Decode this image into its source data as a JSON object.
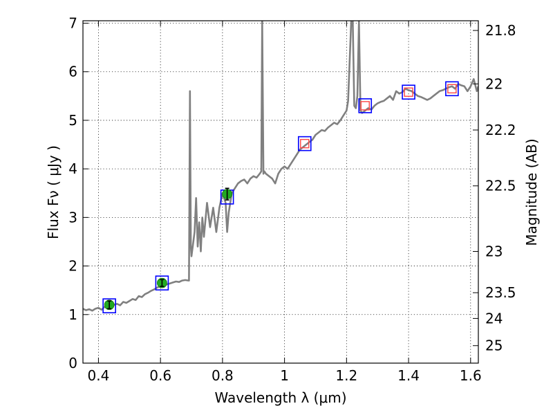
{
  "chart_data": {
    "type": "line",
    "xlabel": "Wavelength  λ (μm)",
    "ylabel": "Flux  Fν  ( μJy )",
    "ylabel_right": "Magnitude (AB)",
    "xlim": [
      0.35,
      1.625
    ],
    "ylim": [
      0,
      7.05
    ],
    "grid": true,
    "x_ticks": [
      {
        "value": 0.4,
        "label": "0.4"
      },
      {
        "value": 0.6,
        "label": "0.6"
      },
      {
        "value": 0.8,
        "label": "0.8"
      },
      {
        "value": 1.0,
        "label": "1"
      },
      {
        "value": 1.2,
        "label": "1.2"
      },
      {
        "value": 1.4,
        "label": "1.4"
      },
      {
        "value": 1.6,
        "label": "1.6"
      }
    ],
    "y_ticks": [
      {
        "value": 0,
        "label": "0"
      },
      {
        "value": 1,
        "label": "1"
      },
      {
        "value": 2,
        "label": "2"
      },
      {
        "value": 3,
        "label": "3"
      },
      {
        "value": 4,
        "label": "4"
      },
      {
        "value": 5,
        "label": "5"
      },
      {
        "value": 6,
        "label": "6"
      },
      {
        "value": 7,
        "label": "7"
      }
    ],
    "right_ticks": [
      {
        "flux": 6.85,
        "label": "21.8"
      },
      {
        "flux": 5.75,
        "label": "22"
      },
      {
        "flux": 4.8,
        "label": "22.2"
      },
      {
        "flux": 3.65,
        "label": "22.5"
      },
      {
        "flux": 2.3,
        "label": "23"
      },
      {
        "flux": 1.45,
        "label": "23.5"
      },
      {
        "flux": 0.92,
        "label": "24"
      },
      {
        "flux": 0.36,
        "label": "25"
      }
    ],
    "series": [
      {
        "color": "#808080",
        "points": [
          [
            0.35,
            1.12
          ],
          [
            0.36,
            1.09
          ],
          [
            0.37,
            1.11
          ],
          [
            0.38,
            1.08
          ],
          [
            0.39,
            1.12
          ],
          [
            0.4,
            1.14
          ],
          [
            0.41,
            1.1
          ],
          [
            0.42,
            1.16
          ],
          [
            0.43,
            1.13
          ],
          [
            0.44,
            1.18
          ],
          [
            0.45,
            1.2
          ],
          [
            0.46,
            1.22
          ],
          [
            0.47,
            1.19
          ],
          [
            0.48,
            1.26
          ],
          [
            0.49,
            1.24
          ],
          [
            0.5,
            1.28
          ],
          [
            0.51,
            1.32
          ],
          [
            0.52,
            1.3
          ],
          [
            0.53,
            1.38
          ],
          [
            0.54,
            1.36
          ],
          [
            0.55,
            1.42
          ],
          [
            0.56,
            1.45
          ],
          [
            0.57,
            1.49
          ],
          [
            0.58,
            1.52
          ],
          [
            0.59,
            1.56
          ],
          [
            0.6,
            1.58
          ],
          [
            0.61,
            1.6
          ],
          [
            0.62,
            1.62
          ],
          [
            0.63,
            1.64
          ],
          [
            0.64,
            1.66
          ],
          [
            0.65,
            1.68
          ],
          [
            0.66,
            1.67
          ],
          [
            0.67,
            1.7
          ],
          [
            0.68,
            1.71
          ],
          [
            0.69,
            1.7
          ],
          [
            0.692,
            1.7
          ],
          [
            0.695,
            5.6
          ],
          [
            0.698,
            2.4
          ],
          [
            0.7,
            2.2
          ],
          [
            0.71,
            2.7
          ],
          [
            0.715,
            3.4
          ],
          [
            0.72,
            2.4
          ],
          [
            0.725,
            2.9
          ],
          [
            0.73,
            2.3
          ],
          [
            0.735,
            3.0
          ],
          [
            0.74,
            2.6
          ],
          [
            0.75,
            3.3
          ],
          [
            0.76,
            2.8
          ],
          [
            0.77,
            3.2
          ],
          [
            0.78,
            2.7
          ],
          [
            0.79,
            3.2
          ],
          [
            0.8,
            3.5
          ],
          [
            0.81,
            3.3
          ],
          [
            0.815,
            2.7
          ],
          [
            0.82,
            3.1
          ],
          [
            0.83,
            3.5
          ],
          [
            0.84,
            3.6
          ],
          [
            0.85,
            3.7
          ],
          [
            0.86,
            3.75
          ],
          [
            0.87,
            3.78
          ],
          [
            0.88,
            3.7
          ],
          [
            0.89,
            3.8
          ],
          [
            0.9,
            3.85
          ],
          [
            0.91,
            3.82
          ],
          [
            0.92,
            3.9
          ],
          [
            0.925,
            3.95
          ],
          [
            0.928,
            7.05
          ],
          [
            0.932,
            3.9
          ],
          [
            0.935,
            3.95
          ],
          [
            0.94,
            3.9
          ],
          [
            0.95,
            3.85
          ],
          [
            0.96,
            3.8
          ],
          [
            0.97,
            3.7
          ],
          [
            0.98,
            3.9
          ],
          [
            0.99,
            4.0
          ],
          [
            1.0,
            4.05
          ],
          [
            1.01,
            4.0
          ],
          [
            1.02,
            4.1
          ],
          [
            1.03,
            4.2
          ],
          [
            1.04,
            4.3
          ],
          [
            1.05,
            4.4
          ],
          [
            1.06,
            4.45
          ],
          [
            1.07,
            4.5
          ],
          [
            1.08,
            4.55
          ],
          [
            1.09,
            4.6
          ],
          [
            1.1,
            4.7
          ],
          [
            1.11,
            4.75
          ],
          [
            1.12,
            4.8
          ],
          [
            1.13,
            4.78
          ],
          [
            1.14,
            4.85
          ],
          [
            1.15,
            4.9
          ],
          [
            1.16,
            4.95
          ],
          [
            1.17,
            4.92
          ],
          [
            1.18,
            5.0
          ],
          [
            1.19,
            5.1
          ],
          [
            1.2,
            5.2
          ],
          [
            1.205,
            5.4
          ],
          [
            1.21,
            6.2
          ],
          [
            1.215,
            7.05
          ],
          [
            1.22,
            7.05
          ],
          [
            1.225,
            5.3
          ],
          [
            1.23,
            5.25
          ],
          [
            1.235,
            5.5
          ],
          [
            1.24,
            7.05
          ],
          [
            1.245,
            5.2
          ],
          [
            1.25,
            5.15
          ],
          [
            1.26,
            5.2
          ],
          [
            1.27,
            5.25
          ],
          [
            1.28,
            5.22
          ],
          [
            1.29,
            5.3
          ],
          [
            1.3,
            5.35
          ],
          [
            1.31,
            5.38
          ],
          [
            1.32,
            5.4
          ],
          [
            1.33,
            5.45
          ],
          [
            1.34,
            5.5
          ],
          [
            1.35,
            5.42
          ],
          [
            1.36,
            5.6
          ],
          [
            1.37,
            5.55
          ],
          [
            1.38,
            5.58
          ],
          [
            1.39,
            5.65
          ],
          [
            1.4,
            5.62
          ],
          [
            1.41,
            5.6
          ],
          [
            1.42,
            5.55
          ],
          [
            1.43,
            5.5
          ],
          [
            1.44,
            5.48
          ],
          [
            1.45,
            5.45
          ],
          [
            1.46,
            5.42
          ],
          [
            1.47,
            5.45
          ],
          [
            1.48,
            5.5
          ],
          [
            1.49,
            5.55
          ],
          [
            1.5,
            5.6
          ],
          [
            1.51,
            5.62
          ],
          [
            1.52,
            5.65
          ],
          [
            1.53,
            5.68
          ],
          [
            1.54,
            5.7
          ],
          [
            1.55,
            5.65
          ],
          [
            1.56,
            5.75
          ],
          [
            1.57,
            5.72
          ],
          [
            1.58,
            5.7
          ],
          [
            1.59,
            5.6
          ],
          [
            1.6,
            5.7
          ],
          [
            1.61,
            5.85
          ],
          [
            1.62,
            5.6
          ],
          [
            1.625,
            5.7
          ]
        ]
      }
    ],
    "photometry": [
      {
        "x": 0.435,
        "y": 1.2,
        "err": 0.08
      },
      {
        "x": 0.605,
        "y": 1.65,
        "err": 0.07
      },
      {
        "x": 0.815,
        "y": 3.48,
        "err": 0.12
      }
    ],
    "model_boxes": [
      {
        "x": 0.435,
        "y": 1.18
      },
      {
        "x": 0.605,
        "y": 1.65
      },
      {
        "x": 0.815,
        "y": 3.42
      },
      {
        "x": 1.065,
        "y": 4.52
      },
      {
        "x": 1.26,
        "y": 5.3
      },
      {
        "x": 1.4,
        "y": 5.58
      },
      {
        "x": 1.54,
        "y": 5.65
      }
    ],
    "nir_photometry": [
      {
        "x": 1.065,
        "y": 4.52
      },
      {
        "x": 1.26,
        "y": 5.3
      },
      {
        "x": 1.4,
        "y": 5.58
      },
      {
        "x": 1.54,
        "y": 5.65
      }
    ],
    "colors": {
      "spectrum": "#808080",
      "box": "#0000ff",
      "green_marker": "#22aa22",
      "red_marker": "#ff4444"
    }
  }
}
